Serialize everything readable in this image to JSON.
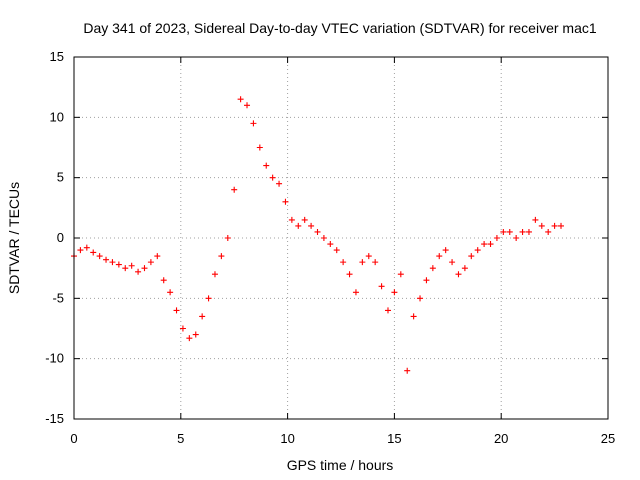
{
  "chart_data": {
    "type": "scatter",
    "title": "Day 341 of 2023, Sidereal Day-to-day VTEC variation (SDTVAR) for receiver mac1",
    "xlabel": "GPS time / hours",
    "ylabel": "SDTVAR / TECUs",
    "xlim": [
      0,
      25
    ],
    "ylim": [
      -15,
      15
    ],
    "xticks": [
      0,
      5,
      10,
      15,
      20,
      25
    ],
    "yticks": [
      -15,
      -10,
      -5,
      0,
      5,
      10,
      15
    ],
    "xtick_labels": [
      "0",
      "5",
      "10",
      "15",
      "20",
      "25"
    ],
    "ytick_labels": [
      "-15",
      "-10",
      "-5",
      "0",
      "5",
      "10",
      "15"
    ],
    "grid": true,
    "marker": "+",
    "color": "#ff0000",
    "series": [
      {
        "name": "SDTVAR",
        "x": [
          0.0,
          0.3,
          0.6,
          0.9,
          1.2,
          1.5,
          1.8,
          2.1,
          2.4,
          2.7,
          3.0,
          3.3,
          3.6,
          3.9,
          4.2,
          4.5,
          4.8,
          5.1,
          5.4,
          5.7,
          6.0,
          6.3,
          6.6,
          6.9,
          7.2,
          7.5,
          7.8,
          8.1,
          8.4,
          8.7,
          9.0,
          9.3,
          9.6,
          9.9,
          10.2,
          10.5,
          10.8,
          11.1,
          11.4,
          11.7,
          12.0,
          12.3,
          12.6,
          12.9,
          13.2,
          13.5,
          13.8,
          14.1,
          14.4,
          14.7,
          15.0,
          15.3,
          15.6,
          15.9,
          16.2,
          16.5,
          16.8,
          17.1,
          17.4,
          17.7,
          18.0,
          18.3,
          18.6,
          18.9,
          19.2,
          19.5,
          19.8,
          20.1,
          20.4,
          20.7,
          21.0,
          21.3,
          21.6,
          21.9,
          22.2,
          22.5,
          22.8
        ],
        "y": [
          -1.5,
          -1.0,
          -0.8,
          -1.2,
          -1.5,
          -1.8,
          -2.0,
          -2.2,
          -2.5,
          -2.3,
          -2.8,
          -2.5,
          -2.0,
          -1.5,
          -3.5,
          -4.5,
          -6.0,
          -7.5,
          -8.3,
          -8.0,
          -6.5,
          -5.0,
          -3.0,
          -1.5,
          0.0,
          4.0,
          11.5,
          11.0,
          9.5,
          7.5,
          6.0,
          5.0,
          4.5,
          3.0,
          1.5,
          1.0,
          1.5,
          1.0,
          0.5,
          0.0,
          -0.5,
          -1.0,
          -2.0,
          -3.0,
          -4.5,
          -2.0,
          -1.5,
          -2.0,
          -4.0,
          -6.0,
          -4.5,
          -3.0,
          -11.0,
          -6.5,
          -5.0,
          -3.5,
          -2.5,
          -1.5,
          -1.0,
          -2.0,
          -3.0,
          -2.5,
          -1.5,
          -1.0,
          -0.5,
          -0.5,
          0.0,
          0.5,
          0.5,
          0.0,
          0.5,
          0.5,
          1.5,
          1.0,
          0.5,
          1.0,
          1.0
        ]
      }
    ]
  }
}
